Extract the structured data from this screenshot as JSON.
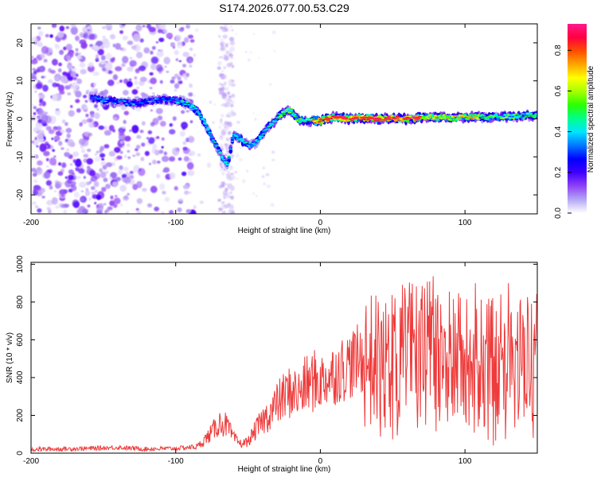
{
  "figure": {
    "title": "S174.2026.077.00.53.C29"
  },
  "chart_data": [
    {
      "type": "heatmap",
      "name": "spectrogram",
      "xlabel": "Height of straight line (km)",
      "ylabel": "Frequency (Hz)",
      "xlim": [
        -200,
        150
      ],
      "ylim": [
        -25,
        25
      ],
      "xticks": [
        -200,
        -100,
        0,
        100
      ],
      "xtick_labels": [
        "-200",
        "-100",
        "0",
        "100"
      ],
      "yticks": [
        20,
        10,
        0,
        -10,
        -20
      ],
      "ytick_labels": [
        "20",
        "10",
        "0",
        "-10",
        "-20"
      ],
      "ridge": {
        "x": [
          -158,
          -150,
          -140,
          -130,
          -120,
          -110,
          -100,
          -92,
          -85,
          -80,
          -75,
          -72,
          -68,
          -64,
          -60,
          -56,
          -52,
          -48,
          -44,
          -40,
          -36,
          -32,
          -28,
          -24,
          -20,
          -16,
          -12,
          -8,
          -4,
          0,
          10,
          20,
          30,
          40,
          50,
          60,
          70,
          80,
          90,
          100,
          110,
          120,
          130,
          140,
          150
        ],
        "y": [
          5.5,
          5,
          4.5,
          4,
          4.5,
          5,
          5,
          4,
          2,
          -1,
          -5,
          -7,
          -10,
          -12,
          -4,
          -5,
          -6.5,
          -7,
          -6,
          -4,
          -2,
          -1,
          1,
          2,
          2,
          0,
          -0.5,
          -0.5,
          -0.5,
          -0.5,
          0.5,
          0,
          0.3,
          0,
          0.2,
          0,
          0.3,
          0.5,
          0.3,
          0.5,
          0.4,
          0.5,
          0.6,
          0.8,
          1
        ]
      },
      "colorbar": {
        "label": "Normalized spectral amplitude",
        "range": [
          0,
          0.93
        ],
        "ticks": [
          0.0,
          0.2,
          0.4,
          0.6,
          0.8
        ],
        "tick_labels": [
          "0.0",
          "0.2",
          "0.4",
          "0.6",
          "0.8"
        ],
        "colors": [
          "#ffffff",
          "#b3a6f5",
          "#8f42f5",
          "#3f00ff",
          "#0000ff",
          "#0077ff",
          "#00e5ff",
          "#00ff8c",
          "#2bff00",
          "#a6ff00",
          "#ffff00",
          "#ffa500",
          "#ff4d00",
          "#ff0040",
          "#ff1a8c"
        ]
      }
    },
    {
      "type": "line",
      "name": "snr",
      "xlabel": "Height of straight line (km)",
      "ylabel": "SNR (10 * v/v)",
      "xlim": [
        -200,
        150
      ],
      "ylim": [
        0,
        1010
      ],
      "xticks": [
        -200,
        -100,
        0,
        100
      ],
      "xtick_labels": [
        "-200",
        "-100",
        "0",
        "100"
      ],
      "yticks": [
        0,
        200,
        400,
        600,
        800,
        1000
      ],
      "ytick_labels": [
        "0",
        "200",
        "400",
        "600",
        "800",
        "1000"
      ],
      "color": "#ee3b3b",
      "series": [
        {
          "name": "SNR",
          "x": [
            -200,
            -180,
            -160,
            -140,
            -120,
            -100,
            -85,
            -80,
            -75,
            -70,
            -65,
            -60,
            -55,
            -50,
            -45,
            -40,
            -35,
            -30,
            -25,
            -20,
            -15,
            -10,
            -5,
            0,
            10,
            20,
            30,
            40,
            50,
            60,
            70,
            80,
            90,
            100,
            110,
            120,
            130,
            140,
            150
          ],
          "y": [
            20,
            22,
            25,
            30,
            22,
            25,
            35,
            70,
            110,
            160,
            150,
            80,
            50,
            60,
            120,
            170,
            210,
            260,
            300,
            330,
            310,
            360,
            380,
            380,
            420,
            470,
            500,
            480,
            500,
            520,
            550,
            520,
            500,
            480,
            480,
            480,
            480,
            480,
            470
          ]
        }
      ]
    }
  ]
}
